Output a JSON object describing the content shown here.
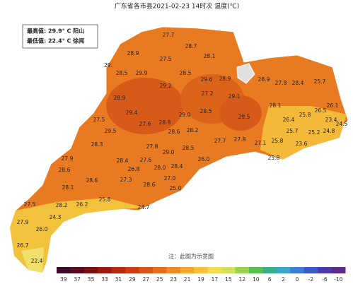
{
  "header": {
    "title": "广东省各市县2021-02-23 14时次 温度(℃)"
  },
  "stats": [
    "最高值: 29.9° C 阳山",
    "最低值: 22.4° C 徐闻"
  ],
  "map_labels": [
    "27.7",
    "28.7",
    "28.9",
    "27.5",
    "28.1",
    "29.",
    "28.5",
    "29.9",
    "28.5",
    "29.6",
    "28.9",
    "28.9",
    "27.8",
    "28.4",
    "25.7",
    "28.9",
    "27.2",
    "29.2",
    "29.1",
    "28.1",
    "29.4",
    "29.0",
    "28.5",
    "29.5",
    "26.4",
    "25.8",
    "26.5",
    "26.1",
    "27.5",
    "27.6",
    "28.8",
    "28.6",
    "28.2",
    "29.5",
    "23.4",
    "24.5",
    "25.7",
    "25.2",
    "24.8",
    "25.8",
    "23.6",
    "27.1",
    "27.8",
    "27.7",
    "28.3",
    "27.8",
    "29.0",
    "28.5",
    "28.4",
    "27.9",
    "27.6",
    "26.0",
    "28.0",
    "28.4",
    "26.8",
    "25.8",
    "28.6",
    "28.6",
    "27.3",
    "27.0",
    "28.6",
    "25.0",
    "28.1",
    "27.5",
    "28.2",
    "26.2",
    "25.8",
    "24.7",
    "24.3",
    "27.9",
    "26.0",
    "26.7",
    "22.4"
  ],
  "note": "注：此图为示意图",
  "colorbar_labels": [
    "39",
    "37",
    "35",
    "33",
    "31",
    "29",
    "27",
    "25",
    "23",
    "21",
    "19",
    "17",
    "15",
    "12",
    "10",
    "6",
    "2",
    "0",
    "-2",
    "-6",
    "-10"
  ]
}
